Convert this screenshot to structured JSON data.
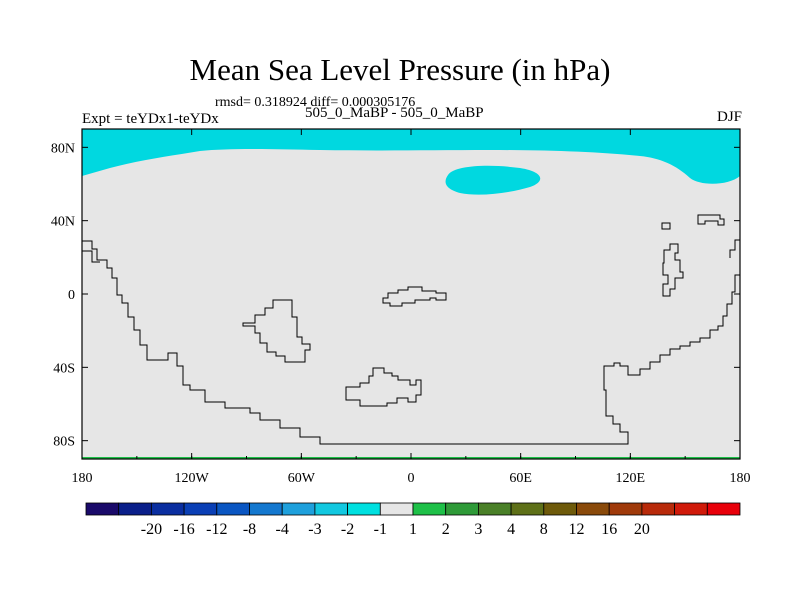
{
  "title": "Mean Sea Level Pressure (in hPa)",
  "rmsd_line": "rmsd= 0.318924 diff= 0.000305176",
  "expt_label": "Expt = teYDx1-teYDx",
  "experiments": "505_0_MaBP - 505_0_MaBP",
  "season": "DJF",
  "lat_ticks": [
    {
      "lat": 80,
      "label": "80N"
    },
    {
      "lat": 40,
      "label": "40N"
    },
    {
      "lat": 0,
      "label": "0"
    },
    {
      "lat": -40,
      "label": "40S"
    },
    {
      "lat": -80,
      "label": "80S"
    }
  ],
  "lon_ticks": [
    {
      "lon": -180,
      "label": "180"
    },
    {
      "lon": -120,
      "label": "120W"
    },
    {
      "lon": -60,
      "label": "60W"
    },
    {
      "lon": 0,
      "label": "0"
    },
    {
      "lon": 60,
      "label": "60E"
    },
    {
      "lon": 120,
      "label": "120E"
    },
    {
      "lon": 180,
      "label": "180"
    }
  ],
  "colorbar": {
    "colors": [
      "#1a0a6a",
      "#0a1f8a",
      "#0a2ea0",
      "#0a3fb5",
      "#0a56c2",
      "#1478cf",
      "#1ea0dc",
      "#12c8e0",
      "#00e0e0",
      "#e6e6e6",
      "#1ec048",
      "#2e9a38",
      "#4a8028",
      "#5e7018",
      "#6e5a0a",
      "#8a4a0a",
      "#a03a0a",
      "#b82a0a",
      "#d01a0a",
      "#e8000a"
    ],
    "labels": [
      "-20",
      "-16",
      "-12",
      "-8",
      "-4",
      "-3",
      "-2",
      "-1",
      "1",
      "2",
      "3",
      "4",
      "8",
      "12",
      "16",
      "20"
    ]
  },
  "map_colors": {
    "background": "#e6e6e6",
    "negative": "#00d8e0",
    "bottom_edge": "#1ec048",
    "coast": "#000000"
  }
}
